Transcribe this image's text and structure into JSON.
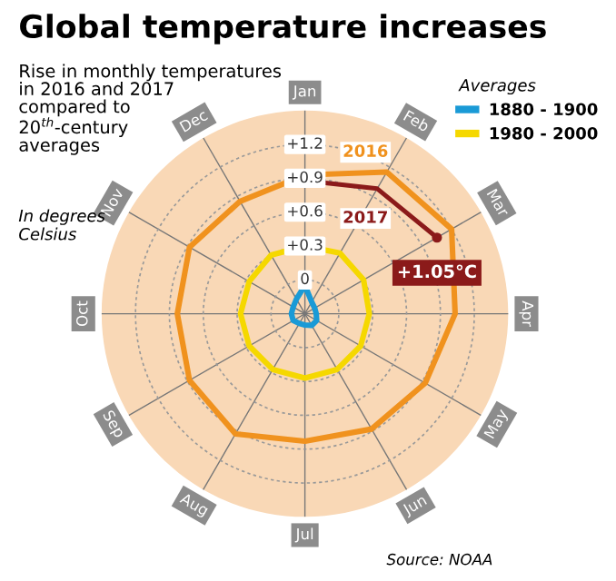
{
  "chart_data": {
    "type": "radar",
    "title": "Global temperature increases",
    "subtitle": "Rise in monthly temperatures\nin 2016 and 2017\ncompared to\n20$^{th}$-century\naverages",
    "annotations": [
      "In degrees\nCelsius",
      "Source: NOAA"
    ],
    "categories": [
      "Jan",
      "Feb",
      "Mar",
      "Apr",
      "May",
      "Jun",
      "Jul",
      "Aug",
      "Sep",
      "Oct",
      "Nov",
      "Dec"
    ],
    "legend_title": "Averages",
    "legend": "top right",
    "series": [
      {
        "name": "1880 - 1900",
        "color": "#1a9ad6",
        "values": [
          -0.05,
          -0.18,
          -0.2,
          -0.2,
          -0.18,
          -0.18,
          -0.2,
          -0.2,
          -0.18,
          -0.18,
          -0.18,
          -0.15
        ]
      },
      {
        "name": "1980 - 2000",
        "color": "#f5d800",
        "values": [
          0.3,
          0.32,
          0.3,
          0.27,
          0.27,
          0.27,
          0.27,
          0.27,
          0.27,
          0.27,
          0.27,
          0.3
        ]
      },
      {
        "name": "2016",
        "color": "#f0921e",
        "values": [
          0.93,
          1.15,
          1.2,
          1.03,
          0.93,
          0.88,
          0.83,
          0.93,
          0.88,
          0.83,
          0.88,
          0.85
        ]
      },
      {
        "name": "2017",
        "color": "#8b1a1a",
        "values": [
          0.88,
          0.98,
          1.05,
          null,
          null,
          null,
          null,
          null,
          null,
          null,
          null,
          null
        ],
        "value_labels": [
          null,
          null,
          "+1.05°C",
          null,
          null,
          null,
          null,
          null,
          null,
          null,
          null,
          null
        ]
      }
    ],
    "ylim": [
      -0.3,
      1.5
    ],
    "yticks": [
      {
        "value": 0,
        "label": "0"
      },
      {
        "value": 0.3,
        "label": "+0.3"
      },
      {
        "value": 0.6,
        "label": "+0.6"
      },
      {
        "value": 0.9,
        "label": "+0.9"
      },
      {
        "value": 1.2,
        "label": "+1.2"
      }
    ],
    "grid": true,
    "marker": "none",
    "line_style": "solid"
  }
}
